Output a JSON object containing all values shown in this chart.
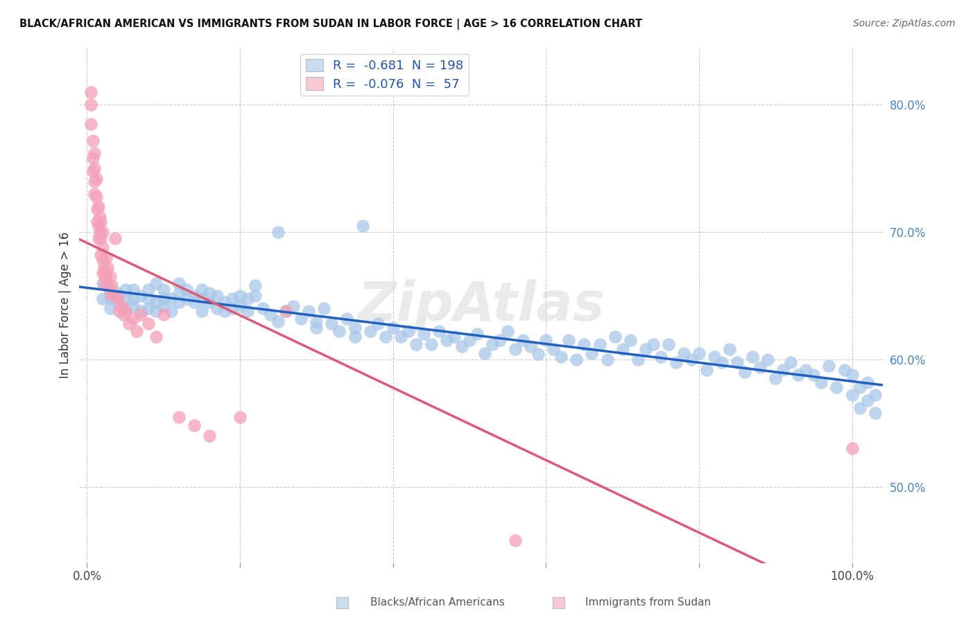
{
  "title": "BLACK/AFRICAN AMERICAN VS IMMIGRANTS FROM SUDAN IN LABOR FORCE | AGE > 16 CORRELATION CHART",
  "source": "Source: ZipAtlas.com",
  "ylabel": "In Labor Force | Age > 16",
  "y_tick_labels_right": [
    "80.0%",
    "70.0%",
    "60.0%",
    "50.0%"
  ],
  "y_tick_positions_right": [
    0.8,
    0.7,
    0.6,
    0.5
  ],
  "xlim": [
    -0.01,
    1.04
  ],
  "ylim": [
    0.44,
    0.845
  ],
  "blue_R": "-0.681",
  "blue_N": "198",
  "pink_R": "-0.076",
  "pink_N": "57",
  "blue_color": "#a8c8e8",
  "pink_color": "#f4a0b8",
  "blue_line_color": "#2060c0",
  "pink_line_color": "#e05878",
  "pink_dashed_color": "#d8b0bc",
  "watermark": "ZipAtlas",
  "background_color": "#ffffff",
  "grid_color": "#cccccc",
  "legend_box_color_blue": "#c8ddf0",
  "legend_box_color_pink": "#f8c8d4",
  "blue_scatter_x": [
    0.02,
    0.02,
    0.03,
    0.03,
    0.03,
    0.04,
    0.04,
    0.05,
    0.05,
    0.05,
    0.06,
    0.06,
    0.06,
    0.07,
    0.07,
    0.08,
    0.08,
    0.08,
    0.09,
    0.09,
    0.09,
    0.1,
    0.1,
    0.1,
    0.11,
    0.11,
    0.12,
    0.12,
    0.12,
    0.13,
    0.13,
    0.14,
    0.14,
    0.15,
    0.15,
    0.15,
    0.16,
    0.16,
    0.17,
    0.17,
    0.18,
    0.18,
    0.19,
    0.19,
    0.2,
    0.2,
    0.21,
    0.21,
    0.22,
    0.22,
    0.23,
    0.24,
    0.25,
    0.25,
    0.26,
    0.27,
    0.28,
    0.29,
    0.3,
    0.3,
    0.31,
    0.32,
    0.33,
    0.34,
    0.35,
    0.35,
    0.36,
    0.37,
    0.38,
    0.39,
    0.4,
    0.41,
    0.42,
    0.43,
    0.44,
    0.45,
    0.46,
    0.47,
    0.48,
    0.49,
    0.5,
    0.51,
    0.52,
    0.53,
    0.54,
    0.55,
    0.56,
    0.57,
    0.58,
    0.59,
    0.6,
    0.61,
    0.62,
    0.63,
    0.64,
    0.65,
    0.66,
    0.67,
    0.68,
    0.69,
    0.7,
    0.71,
    0.72,
    0.73,
    0.74,
    0.75,
    0.76,
    0.77,
    0.78,
    0.79,
    0.8,
    0.81,
    0.82,
    0.83,
    0.84,
    0.85,
    0.86,
    0.87,
    0.88,
    0.89,
    0.9,
    0.91,
    0.92,
    0.93,
    0.94,
    0.95,
    0.96,
    0.97,
    0.98,
    0.99,
    1.0,
    1.0,
    1.01,
    1.01,
    1.02,
    1.02,
    1.03,
    1.03
  ],
  "blue_scatter_y": [
    0.66,
    0.648,
    0.655,
    0.648,
    0.64,
    0.645,
    0.652,
    0.648,
    0.64,
    0.655,
    0.648,
    0.655,
    0.642,
    0.65,
    0.638,
    0.648,
    0.655,
    0.64,
    0.645,
    0.638,
    0.66,
    0.648,
    0.642,
    0.655,
    0.648,
    0.638,
    0.652,
    0.645,
    0.66,
    0.648,
    0.655,
    0.65,
    0.645,
    0.655,
    0.648,
    0.638,
    0.652,
    0.645,
    0.65,
    0.64,
    0.645,
    0.638,
    0.648,
    0.64,
    0.65,
    0.642,
    0.648,
    0.638,
    0.65,
    0.658,
    0.64,
    0.635,
    0.7,
    0.63,
    0.638,
    0.642,
    0.632,
    0.638,
    0.63,
    0.625,
    0.64,
    0.628,
    0.622,
    0.632,
    0.625,
    0.618,
    0.705,
    0.622,
    0.628,
    0.618,
    0.625,
    0.618,
    0.622,
    0.612,
    0.62,
    0.612,
    0.622,
    0.615,
    0.618,
    0.61,
    0.615,
    0.62,
    0.605,
    0.612,
    0.615,
    0.622,
    0.608,
    0.615,
    0.61,
    0.604,
    0.615,
    0.608,
    0.602,
    0.615,
    0.6,
    0.612,
    0.605,
    0.612,
    0.6,
    0.618,
    0.608,
    0.615,
    0.6,
    0.608,
    0.612,
    0.602,
    0.612,
    0.598,
    0.605,
    0.6,
    0.605,
    0.592,
    0.602,
    0.598,
    0.608,
    0.598,
    0.59,
    0.602,
    0.594,
    0.6,
    0.585,
    0.592,
    0.598,
    0.588,
    0.592,
    0.588,
    0.582,
    0.595,
    0.578,
    0.592,
    0.588,
    0.572,
    0.578,
    0.562,
    0.582,
    0.568,
    0.558,
    0.572
  ],
  "pink_scatter_x": [
    0.005,
    0.005,
    0.005,
    0.008,
    0.008,
    0.008,
    0.01,
    0.01,
    0.01,
    0.01,
    0.012,
    0.012,
    0.013,
    0.013,
    0.015,
    0.015,
    0.015,
    0.017,
    0.017,
    0.018,
    0.018,
    0.018,
    0.02,
    0.02,
    0.02,
    0.02,
    0.022,
    0.022,
    0.023,
    0.025,
    0.025,
    0.027,
    0.028,
    0.03,
    0.03,
    0.032,
    0.035,
    0.037,
    0.04,
    0.042,
    0.045,
    0.048,
    0.05,
    0.055,
    0.06,
    0.065,
    0.07,
    0.08,
    0.09,
    0.1,
    0.12,
    0.14,
    0.16,
    0.2,
    0.26,
    0.56,
    1.0
  ],
  "pink_scatter_y": [
    0.81,
    0.8,
    0.785,
    0.772,
    0.758,
    0.748,
    0.762,
    0.75,
    0.74,
    0.73,
    0.742,
    0.728,
    0.718,
    0.708,
    0.72,
    0.705,
    0.695,
    0.712,
    0.7,
    0.708,
    0.695,
    0.682,
    0.7,
    0.688,
    0.678,
    0.668,
    0.672,
    0.66,
    0.668,
    0.68,
    0.665,
    0.672,
    0.658,
    0.665,
    0.652,
    0.658,
    0.65,
    0.695,
    0.648,
    0.638,
    0.642,
    0.635,
    0.638,
    0.628,
    0.632,
    0.622,
    0.635,
    0.628,
    0.618,
    0.635,
    0.555,
    0.548,
    0.54,
    0.555,
    0.638,
    0.458,
    0.53
  ]
}
